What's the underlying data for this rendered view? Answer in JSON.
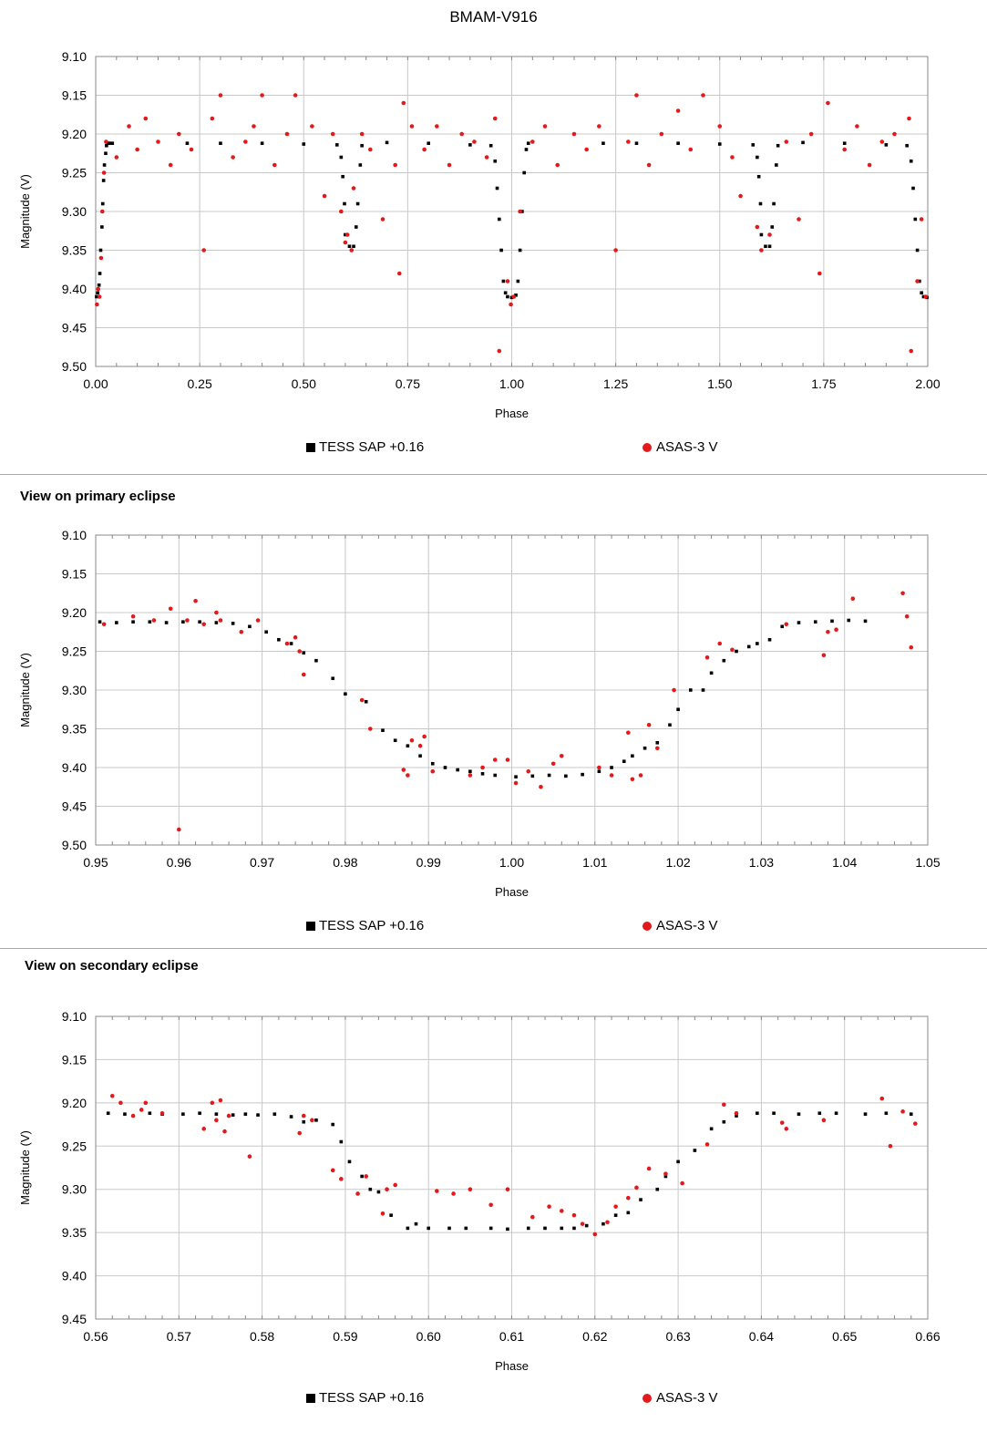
{
  "title": "BMAM-V916",
  "colors": {
    "tess": "#000000",
    "asas": "#e31a1c",
    "grid": "#c8c8c8"
  },
  "legend": {
    "tess": "TESS SAP +0.16",
    "asas": "ASAS-3 V"
  },
  "chart_data": [
    {
      "type": "scatter",
      "title": "",
      "xlabel": "Phase",
      "ylabel": "Magnitude (V)",
      "xlim": [
        0.0,
        2.0
      ],
      "ylim": [
        9.1,
        9.5
      ],
      "y_reversed": true,
      "grid": true,
      "legend_position": "bottom",
      "xticks": [
        "0.00",
        "0.25",
        "0.50",
        "0.75",
        "1.00",
        "1.25",
        "1.50",
        "1.75",
        "2.00"
      ],
      "yticks": [
        "9.10",
        "9.15",
        "9.20",
        "9.25",
        "9.30",
        "9.35",
        "9.40",
        "9.45",
        "9.50"
      ],
      "series": [
        {
          "name": "TESS SAP +0.16",
          "marker": "square",
          "x": [
            0.002,
            0.005,
            0.008,
            0.01,
            0.012,
            0.015,
            0.017,
            0.019,
            0.021,
            0.024,
            0.026,
            0.029,
            0.032,
            0.035,
            0.04,
            0.22,
            0.3,
            0.4,
            0.5,
            0.58,
            0.59,
            0.594,
            0.598,
            0.6,
            0.61,
            0.62,
            0.626,
            0.63,
            0.636,
            0.64,
            0.7,
            0.8,
            0.9,
            0.95,
            0.96,
            0.965,
            0.97,
            0.975,
            0.98,
            0.985,
            0.99,
            1.0,
            1.01,
            1.015,
            1.02,
            1.025,
            1.03,
            1.035,
            1.04,
            1.22,
            1.3,
            1.4,
            1.5,
            1.58,
            1.59,
            1.594,
            1.598,
            1.6,
            1.61,
            1.62,
            1.626,
            1.63,
            1.636,
            1.64,
            1.7,
            1.8,
            1.9,
            1.95,
            1.96,
            1.965,
            1.97,
            1.975,
            1.98,
            1.985,
            1.99,
            1.998
          ],
          "y": [
            9.41,
            9.405,
            9.395,
            9.38,
            9.35,
            9.32,
            9.29,
            9.26,
            9.24,
            9.225,
            9.215,
            9.212,
            9.212,
            9.212,
            9.212,
            9.212,
            9.212,
            9.212,
            9.213,
            9.214,
            9.23,
            9.255,
            9.29,
            9.33,
            9.345,
            9.345,
            9.32,
            9.29,
            9.24,
            9.215,
            9.211,
            9.212,
            9.214,
            9.215,
            9.235,
            9.27,
            9.31,
            9.35,
            9.39,
            9.405,
            9.41,
            9.411,
            9.408,
            9.39,
            9.35,
            9.3,
            9.25,
            9.22,
            9.212,
            9.212,
            9.212,
            9.212,
            9.213,
            9.214,
            9.23,
            9.255,
            9.29,
            9.33,
            9.345,
            9.345,
            9.32,
            9.29,
            9.24,
            9.215,
            9.211,
            9.212,
            9.214,
            9.215,
            9.235,
            9.27,
            9.31,
            9.35,
            9.39,
            9.405,
            9.41,
            9.411
          ]
        },
        {
          "name": "ASAS-3 V",
          "marker": "circle",
          "x": [
            0.003,
            0.006,
            0.009,
            0.013,
            0.016,
            0.02,
            0.025,
            0.05,
            0.08,
            0.1,
            0.12,
            0.15,
            0.18,
            0.2,
            0.23,
            0.26,
            0.28,
            0.3,
            0.33,
            0.36,
            0.38,
            0.4,
            0.43,
            0.46,
            0.48,
            0.52,
            0.55,
            0.57,
            0.59,
            0.6,
            0.605,
            0.615,
            0.62,
            0.64,
            0.66,
            0.69,
            0.72,
            0.73,
            0.74,
            0.76,
            0.79,
            0.82,
            0.85,
            0.88,
            0.91,
            0.94,
            0.96,
            0.97,
            0.99,
            0.998,
            1.005,
            1.02,
            1.05,
            1.08,
            1.11,
            1.15,
            1.18,
            1.21,
            1.25,
            1.28,
            1.3,
            1.33,
            1.36,
            1.4,
            1.43,
            1.46,
            1.5,
            1.53,
            1.55,
            1.59,
            1.6,
            1.62,
            1.66,
            1.69,
            1.72,
            1.74,
            1.76,
            1.8,
            1.83,
            1.86,
            1.89,
            1.92,
            1.955,
            1.96,
            1.975,
            1.985,
            1.995
          ],
          "y": [
            9.42,
            9.4,
            9.41,
            9.36,
            9.3,
            9.25,
            9.21,
            9.23,
            9.19,
            9.22,
            9.18,
            9.21,
            9.24,
            9.2,
            9.22,
            9.35,
            9.18,
            9.15,
            9.23,
            9.21,
            9.19,
            9.15,
            9.24,
            9.2,
            9.15,
            9.19,
            9.28,
            9.2,
            9.3,
            9.34,
            9.33,
            9.35,
            9.27,
            9.2,
            9.22,
            9.31,
            9.24,
            9.38,
            9.16,
            9.19,
            9.22,
            9.19,
            9.24,
            9.2,
            9.21,
            9.23,
            9.18,
            9.48,
            9.39,
            9.42,
            9.41,
            9.3,
            9.21,
            9.19,
            9.24,
            9.2,
            9.22,
            9.19,
            9.35,
            9.21,
            9.15,
            9.24,
            9.2,
            9.17,
            9.22,
            9.15,
            9.19,
            9.23,
            9.28,
            9.32,
            9.35,
            9.33,
            9.21,
            9.31,
            9.2,
            9.38,
            9.16,
            9.22,
            9.19,
            9.24,
            9.21,
            9.2,
            9.18,
            9.48,
            9.39,
            9.31,
            9.41
          ]
        }
      ]
    },
    {
      "type": "scatter",
      "title": "View on primary eclipse",
      "xlabel": "Phase",
      "ylabel": "Magnitude (V)",
      "xlim": [
        0.95,
        1.05
      ],
      "ylim": [
        9.1,
        9.5
      ],
      "y_reversed": true,
      "grid": true,
      "legend_position": "bottom",
      "xticks": [
        "0.95",
        "0.96",
        "0.97",
        "0.98",
        "0.99",
        "1.00",
        "1.01",
        "1.02",
        "1.03",
        "1.04",
        "1.05"
      ],
      "yticks": [
        "9.10",
        "9.15",
        "9.20",
        "9.25",
        "9.30",
        "9.35",
        "9.40",
        "9.45",
        "9.50"
      ],
      "series": [
        {
          "name": "TESS SAP +0.16",
          "marker": "square",
          "x": [
            0.9505,
            0.9525,
            0.9545,
            0.9565,
            0.9585,
            0.9605,
            0.9625,
            0.9645,
            0.9665,
            0.9685,
            0.9705,
            0.972,
            0.9735,
            0.975,
            0.9765,
            0.9785,
            0.98,
            0.9825,
            0.9845,
            0.986,
            0.9875,
            0.989,
            0.9905,
            0.992,
            0.9935,
            0.995,
            0.9965,
            0.998,
            1.0005,
            1.0025,
            1.0045,
            1.0065,
            1.0085,
            1.0105,
            1.012,
            1.0135,
            1.0145,
            1.016,
            1.0175,
            1.019,
            1.02,
            1.0215,
            1.023,
            1.024,
            1.0255,
            1.027,
            1.0285,
            1.0295,
            1.031,
            1.0325,
            1.0345,
            1.0365,
            1.0385,
            1.0405,
            1.0425
          ],
          "y": [
            9.212,
            9.213,
            9.212,
            9.212,
            9.213,
            9.212,
            9.212,
            9.213,
            9.214,
            9.218,
            9.225,
            9.235,
            9.24,
            9.252,
            9.262,
            9.285,
            9.305,
            9.315,
            9.352,
            9.365,
            9.372,
            9.385,
            9.395,
            9.4,
            9.403,
            9.405,
            9.408,
            9.41,
            9.412,
            9.411,
            9.41,
            9.411,
            9.409,
            9.405,
            9.4,
            9.392,
            9.385,
            9.375,
            9.368,
            9.345,
            9.325,
            9.3,
            9.3,
            9.278,
            9.262,
            9.25,
            9.244,
            9.24,
            9.235,
            9.218,
            9.213,
            9.212,
            9.211,
            9.21,
            9.211
          ]
        },
        {
          "name": "ASAS-3 V",
          "marker": "circle",
          "x": [
            0.951,
            0.9545,
            0.957,
            0.959,
            0.96,
            0.961,
            0.962,
            0.963,
            0.9645,
            0.965,
            0.9675,
            0.9695,
            0.973,
            0.974,
            0.9745,
            0.975,
            0.982,
            0.983,
            0.987,
            0.9875,
            0.988,
            0.989,
            0.9895,
            0.9905,
            0.995,
            0.9965,
            0.998,
            0.9995,
            1.0005,
            1.002,
            1.0035,
            1.005,
            1.006,
            1.0105,
            1.012,
            1.014,
            1.0145,
            1.0155,
            1.0165,
            1.0175,
            1.0195,
            1.0235,
            1.025,
            1.0265,
            1.033,
            1.0375,
            1.038,
            1.039,
            1.041,
            1.047,
            1.0475,
            1.048
          ],
          "y": [
            9.215,
            9.205,
            9.21,
            9.195,
            9.48,
            9.21,
            9.185,
            9.215,
            9.2,
            9.21,
            9.225,
            9.21,
            9.24,
            9.232,
            9.25,
            9.28,
            9.313,
            9.35,
            9.403,
            9.41,
            9.365,
            9.372,
            9.36,
            9.405,
            9.41,
            9.4,
            9.39,
            9.39,
            9.42,
            9.405,
            9.425,
            9.395,
            9.385,
            9.4,
            9.41,
            9.355,
            9.415,
            9.41,
            9.345,
            9.375,
            9.3,
            9.258,
            9.24,
            9.248,
            9.215,
            9.255,
            9.225,
            9.222,
            9.182,
            9.175,
            9.205,
            9.245
          ]
        }
      ]
    },
    {
      "type": "scatter",
      "title": "View on secondary eclipse",
      "xlabel": "Phase",
      "ylabel": "Magnitude (V)",
      "xlim": [
        0.56,
        0.66
      ],
      "ylim": [
        9.1,
        9.45
      ],
      "y_reversed": true,
      "grid": true,
      "legend_position": "bottom",
      "xticks": [
        "0.56",
        "0.57",
        "0.58",
        "0.59",
        "0.60",
        "0.61",
        "0.62",
        "0.63",
        "0.64",
        "0.65",
        "0.66"
      ],
      "yticks": [
        "9.10",
        "9.15",
        "9.20",
        "9.25",
        "9.30",
        "9.35",
        "9.40",
        "9.45"
      ],
      "series": [
        {
          "name": "TESS SAP +0.16",
          "marker": "square",
          "x": [
            0.5615,
            0.5635,
            0.5665,
            0.568,
            0.5705,
            0.5725,
            0.5745,
            0.5765,
            0.578,
            0.5795,
            0.5815,
            0.5835,
            0.585,
            0.5865,
            0.5885,
            0.5895,
            0.5905,
            0.592,
            0.593,
            0.594,
            0.5955,
            0.5975,
            0.5985,
            0.6,
            0.6025,
            0.6045,
            0.6075,
            0.6095,
            0.612,
            0.614,
            0.616,
            0.6175,
            0.619,
            0.621,
            0.6225,
            0.624,
            0.6255,
            0.6275,
            0.6285,
            0.63,
            0.632,
            0.634,
            0.6355,
            0.637,
            0.6395,
            0.6415,
            0.6445,
            0.647,
            0.649,
            0.6525,
            0.655,
            0.658
          ],
          "y": [
            9.212,
            9.213,
            9.212,
            9.213,
            9.213,
            9.212,
            9.213,
            9.214,
            9.213,
            9.214,
            9.213,
            9.216,
            9.222,
            9.22,
            9.225,
            9.245,
            9.268,
            9.285,
            9.3,
            9.303,
            9.33,
            9.345,
            9.34,
            9.345,
            9.345,
            9.345,
            9.345,
            9.346,
            9.345,
            9.345,
            9.345,
            9.345,
            9.342,
            9.34,
            9.33,
            9.327,
            9.312,
            9.3,
            9.285,
            9.268,
            9.255,
            9.23,
            9.222,
            9.215,
            9.212,
            9.212,
            9.213,
            9.212,
            9.212,
            9.213,
            9.212,
            9.213
          ]
        },
        {
          "name": "ASAS-3 V",
          "marker": "circle",
          "x": [
            0.562,
            0.563,
            0.5645,
            0.5655,
            0.566,
            0.568,
            0.573,
            0.574,
            0.5745,
            0.575,
            0.5755,
            0.576,
            0.5785,
            0.5845,
            0.585,
            0.586,
            0.5885,
            0.5895,
            0.5915,
            0.5925,
            0.5945,
            0.595,
            0.596,
            0.601,
            0.603,
            0.605,
            0.6075,
            0.6095,
            0.6125,
            0.6145,
            0.616,
            0.6175,
            0.6185,
            0.62,
            0.6215,
            0.6225,
            0.624,
            0.625,
            0.6265,
            0.6285,
            0.6305,
            0.6335,
            0.6355,
            0.637,
            0.6425,
            0.643,
            0.6475,
            0.6545,
            0.6555,
            0.657,
            0.6585
          ],
          "y": [
            9.192,
            9.2,
            9.215,
            9.208,
            9.2,
            9.212,
            9.23,
            9.2,
            9.22,
            9.197,
            9.233,
            9.215,
            9.262,
            9.235,
            9.215,
            9.22,
            9.278,
            9.288,
            9.305,
            9.285,
            9.328,
            9.3,
            9.295,
            9.302,
            9.305,
            9.3,
            9.318,
            9.3,
            9.332,
            9.32,
            9.325,
            9.33,
            9.34,
            9.352,
            9.338,
            9.32,
            9.31,
            9.298,
            9.276,
            9.282,
            9.293,
            9.248,
            9.202,
            9.212,
            9.223,
            9.23,
            9.22,
            9.195,
            9.25,
            9.21,
            9.224
          ]
        }
      ]
    }
  ]
}
